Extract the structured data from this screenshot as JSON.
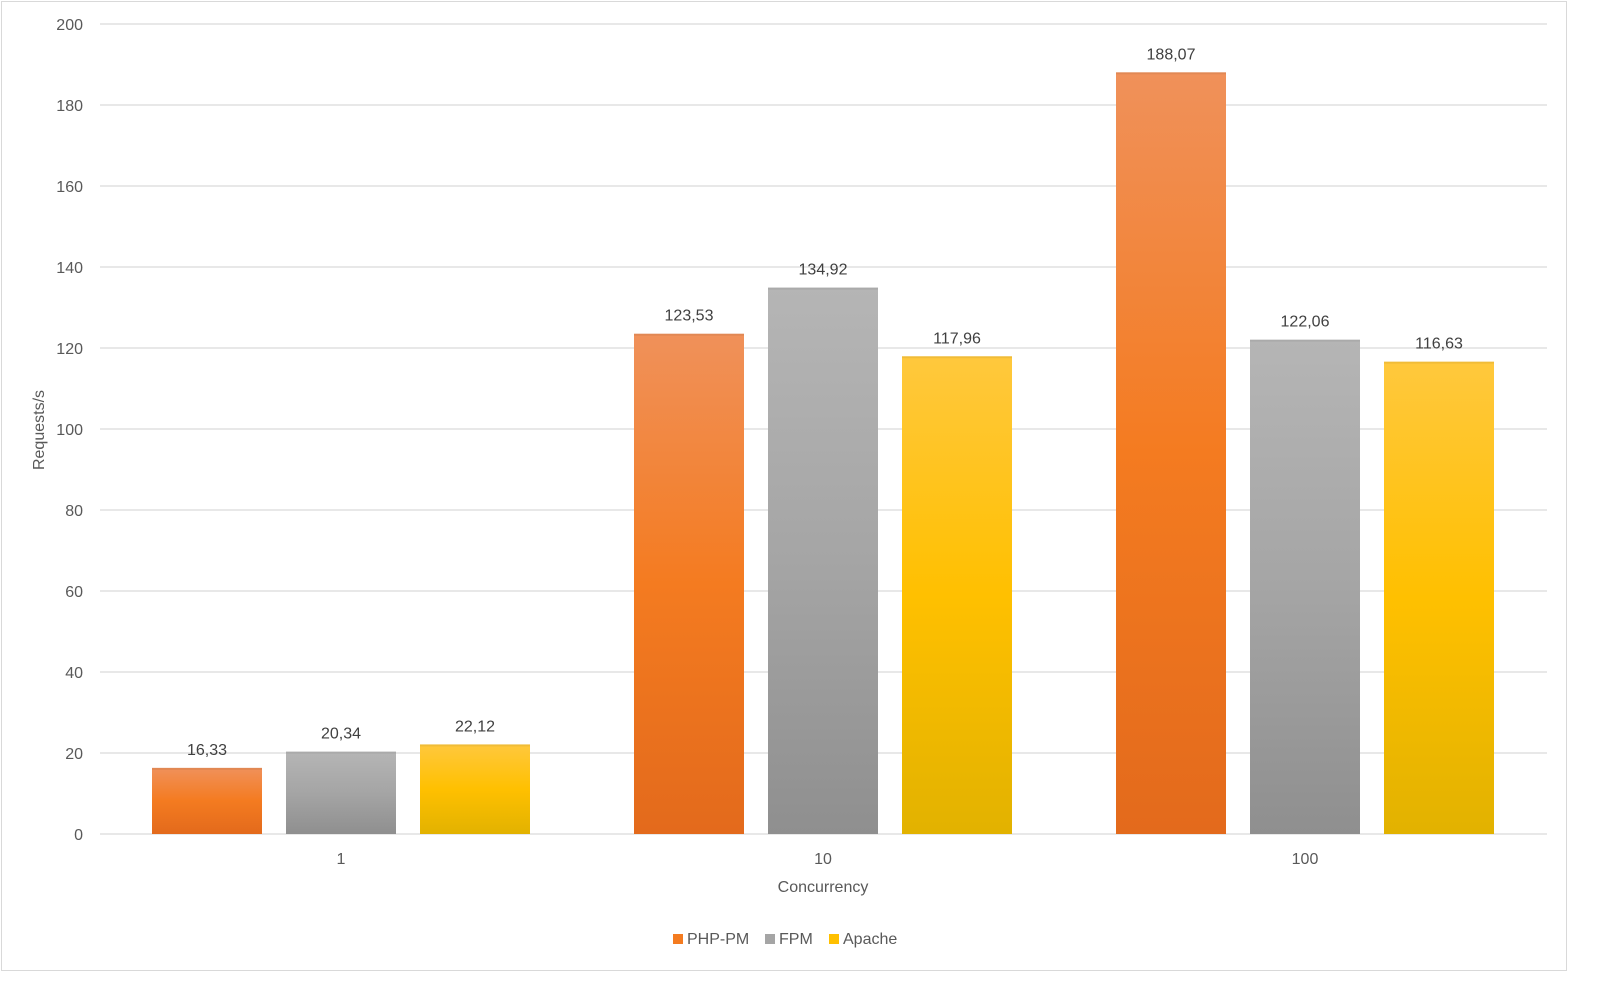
{
  "chart_data": {
    "type": "bar",
    "title": "",
    "xlabel": "Concurrency",
    "ylabel": "Requests/s",
    "categories": [
      "1",
      "10",
      "100"
    ],
    "series": [
      {
        "name": "PHP-PM",
        "values": [
          16.33,
          123.53,
          188.07
        ],
        "labels": [
          "16,33",
          "123,53",
          "188,07"
        ],
        "color_top": "#f0915a",
        "color_mid": "#f47b20",
        "color_bottom": "#e36a1c"
      },
      {
        "name": "FPM",
        "values": [
          20.34,
          134.92,
          122.06
        ],
        "labels": [
          "20,34",
          "134,92",
          "122,06"
        ],
        "color_top": "#b5b5b5",
        "color_mid": "#a5a5a5",
        "color_bottom": "#8f8f8f"
      },
      {
        "name": "Apache",
        "values": [
          22.12,
          117.96,
          116.63
        ],
        "labels": [
          "22,12",
          "117,96",
          "116,63"
        ],
        "color_top": "#ffc83d",
        "color_mid": "#ffc000",
        "color_bottom": "#e2b200"
      }
    ],
    "ylim": [
      0,
      200
    ],
    "yticks": [
      0,
      20,
      40,
      60,
      80,
      100,
      120,
      140,
      160,
      180,
      200
    ],
    "grid": true,
    "legend_position": "bottom",
    "gridline_color": "#d9d9d9"
  }
}
